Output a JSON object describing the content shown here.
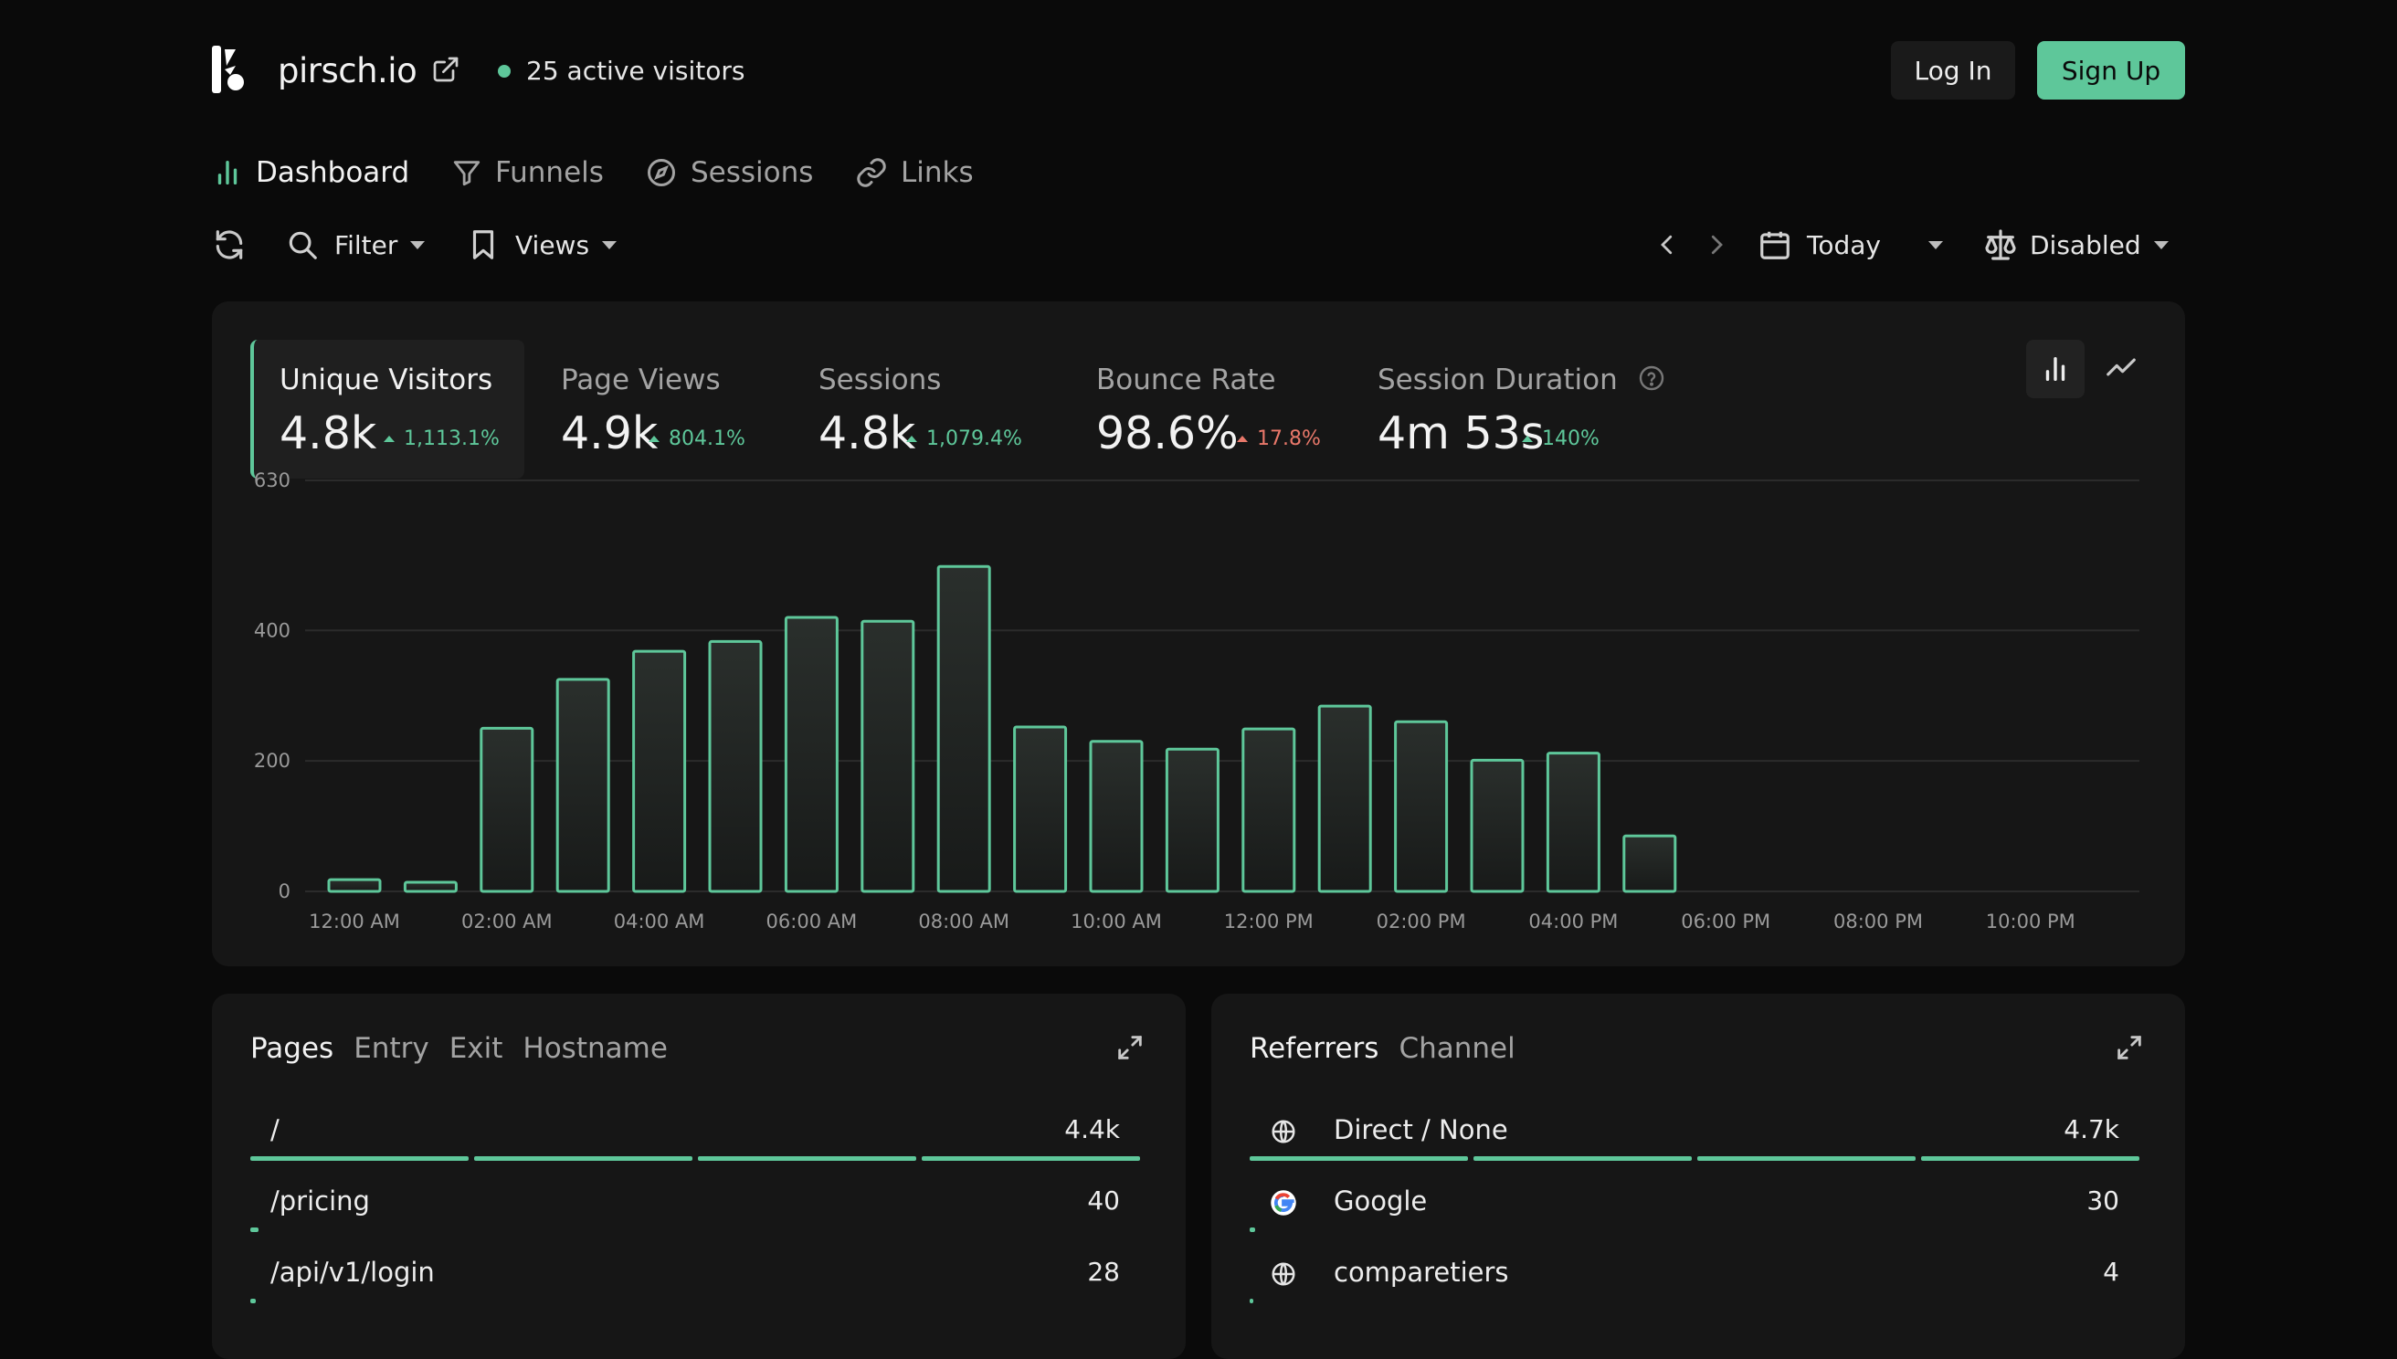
{
  "header": {
    "brand": "pirsch.io",
    "active_visitors": "25 active visitors",
    "login_label": "Log In",
    "signup_label": "Sign Up",
    "accent": "#5ec79a"
  },
  "nav": [
    {
      "label": "Dashboard",
      "icon": "bar-chart-icon",
      "active": true
    },
    {
      "label": "Funnels",
      "icon": "funnel-icon",
      "active": false
    },
    {
      "label": "Sessions",
      "icon": "compass-icon",
      "active": false
    },
    {
      "label": "Links",
      "icon": "link-icon",
      "active": false
    }
  ],
  "toolbar": {
    "filter_label": "Filter",
    "views_label": "Views",
    "period_label": "Today",
    "compare_label": "Disabled"
  },
  "metrics": [
    {
      "label": "Unique Visitors",
      "value": "4.8k",
      "delta": "1,113.1%",
      "trend": "up",
      "active": true
    },
    {
      "label": "Page Views",
      "value": "4.9k",
      "delta": "804.1%",
      "trend": "up",
      "active": false
    },
    {
      "label": "Sessions",
      "value": "4.8k",
      "delta": "1,079.4%",
      "trend": "up",
      "active": false
    },
    {
      "label": "Bounce Rate",
      "value": "98.6%",
      "delta": "17.8%",
      "trend": "up-bad",
      "active": false
    },
    {
      "label": "Session Duration",
      "value": "4m 53s",
      "delta": "140%",
      "trend": "up",
      "active": false
    }
  ],
  "chart_data": {
    "type": "bar",
    "x": [
      "12:00 AM",
      "01:00 AM",
      "02:00 AM",
      "03:00 AM",
      "04:00 AM",
      "05:00 AM",
      "06:00 AM",
      "07:00 AM",
      "08:00 AM",
      "09:00 AM",
      "10:00 AM",
      "11:00 AM",
      "12:00 PM",
      "01:00 PM",
      "02:00 PM",
      "03:00 PM",
      "04:00 PM",
      "05:00 PM",
      "06:00 PM",
      "07:00 PM",
      "08:00 PM",
      "09:00 PM",
      "10:00 PM",
      "11:00 PM"
    ],
    "x_tick_labels": [
      "12:00 AM",
      "02:00 AM",
      "04:00 AM",
      "06:00 AM",
      "08:00 AM",
      "10:00 AM",
      "12:00 PM",
      "02:00 PM",
      "04:00 PM",
      "06:00 PM",
      "08:00 PM",
      "10:00 PM"
    ],
    "values": [
      18,
      14,
      250,
      325,
      368,
      383,
      420,
      414,
      498,
      252,
      230,
      218,
      249,
      284,
      260,
      201,
      212,
      85,
      0,
      0,
      0,
      0,
      0,
      0
    ],
    "y_ticks": [
      0,
      200,
      400,
      630
    ],
    "ylim": [
      0,
      630
    ],
    "color": "#5ec79a",
    "grid": true
  },
  "pages_panel": {
    "tabs": [
      {
        "label": "Pages",
        "active": true
      },
      {
        "label": "Entry",
        "active": false
      },
      {
        "label": "Exit",
        "active": false
      },
      {
        "label": "Hostname",
        "active": false
      }
    ],
    "rows": [
      {
        "label": "/",
        "value": "4.4k",
        "share": 1.0
      },
      {
        "label": "/pricing",
        "value": "40",
        "share": 0.009
      },
      {
        "label": "/api/v1/login",
        "value": "28",
        "share": 0.006
      }
    ]
  },
  "referrers_panel": {
    "tabs": [
      {
        "label": "Referrers",
        "active": true
      },
      {
        "label": "Channel",
        "active": false
      }
    ],
    "rows": [
      {
        "label": "Direct / None",
        "value": "4.7k",
        "icon": "globe-icon",
        "share": 1.0
      },
      {
        "label": "Google",
        "value": "30",
        "icon": "google-icon",
        "share": 0.006
      },
      {
        "label": "comparetiers",
        "value": "4",
        "icon": "globe-icon",
        "share": 0.001
      }
    ]
  }
}
